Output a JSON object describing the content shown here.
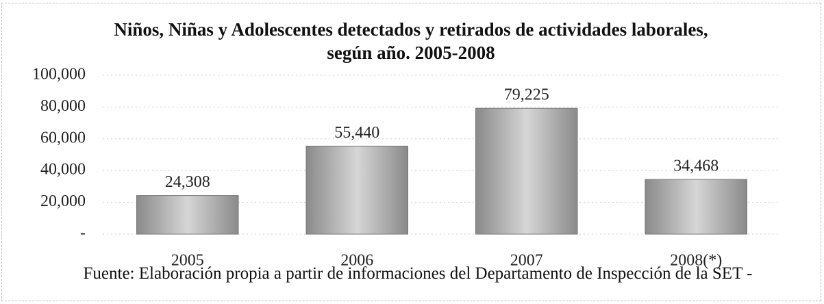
{
  "chart_data": {
    "type": "bar",
    "title": "Niños, Niñas y Adolescentes  detectados y retirados de actividades laborales, según año.  2005-2008",
    "categories": [
      "2005",
      "2006",
      "2007",
      "2008(*)"
    ],
    "values": [
      24308,
      55440,
      79225,
      34468
    ],
    "value_labels": [
      "24,308",
      "55,440",
      "79,225",
      "34,468"
    ],
    "color": "#b0b0b0",
    "ylim": [
      0,
      100000
    ],
    "yticks": [
      {
        "value": 0,
        "label": "-"
      },
      {
        "value": 20000,
        "label": "20,000"
      },
      {
        "value": 40000,
        "label": "40,000"
      },
      {
        "value": 60000,
        "label": "60,000"
      },
      {
        "value": 80000,
        "label": "80,000"
      },
      {
        "value": 100000,
        "label": "100,000"
      }
    ],
    "grid": true,
    "source": "Fuente: Elaboración propia a partir de informaciones  del Departamento de Inspección de la SET -"
  }
}
